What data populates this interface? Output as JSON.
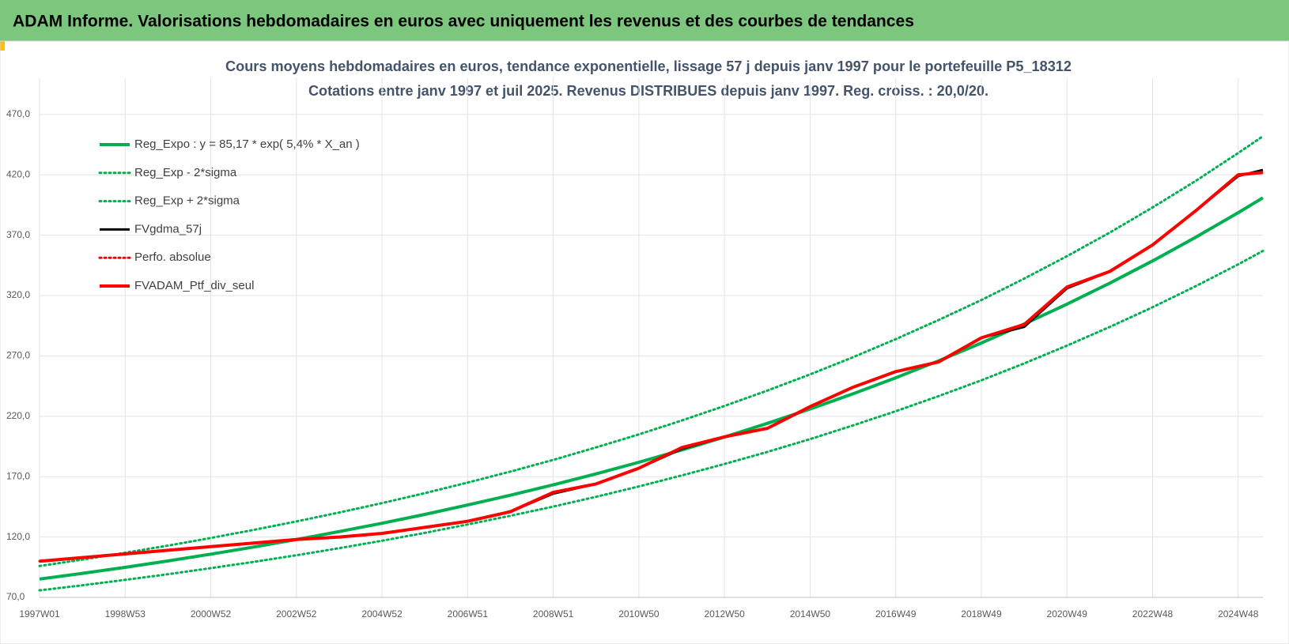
{
  "header": {
    "title": "ADAM Informe. Valorisations hebdomadaires en euros avec uniquement les revenus et des courbes de tendances"
  },
  "chart_data": {
    "type": "line",
    "title": "Cours moyens hebdomadaires  en euros, tendance exponentielle, lissage 57 j depuis janv 1997 pour le portefeuille P5_18312",
    "subtitle": "Cotations entre janv 1997 et juil 2025. Revenus DISTRIBUES depuis janv 1997. Reg. croiss. : 20,0/20.",
    "x": [
      0,
      52,
      104,
      156,
      208,
      260,
      312,
      364,
      416,
      468,
      520,
      572,
      624,
      676,
      728,
      780,
      832,
      884,
      936,
      988,
      1040,
      1092,
      1144,
      1196,
      1248,
      1300,
      1352,
      1404,
      1456,
      1486
    ],
    "xlim": [
      0,
      1486
    ],
    "xticks": [
      {
        "value": 0,
        "label": "1997W01"
      },
      {
        "value": 104,
        "label": "1998W53"
      },
      {
        "value": 208,
        "label": "2000W52"
      },
      {
        "value": 312,
        "label": "2002W52"
      },
      {
        "value": 416,
        "label": "2004W52"
      },
      {
        "value": 520,
        "label": "2006W51"
      },
      {
        "value": 624,
        "label": "2008W51"
      },
      {
        "value": 728,
        "label": "2010W50"
      },
      {
        "value": 832,
        "label": "2012W50"
      },
      {
        "value": 936,
        "label": "2014W50"
      },
      {
        "value": 1040,
        "label": "2016W49"
      },
      {
        "value": 1144,
        "label": "2018W49"
      },
      {
        "value": 1248,
        "label": "2020W49"
      },
      {
        "value": 1352,
        "label": "2022W48"
      },
      {
        "value": 1456,
        "label": "2024W48"
      }
    ],
    "ylim": [
      70,
      500
    ],
    "yticks": [
      {
        "value": 70,
        "label": "70,0"
      },
      {
        "value": 120,
        "label": "120,0"
      },
      {
        "value": 170,
        "label": "170,0"
      },
      {
        "value": 220,
        "label": "220,0"
      },
      {
        "value": 270,
        "label": "270,0"
      },
      {
        "value": 320,
        "label": "320,0"
      },
      {
        "value": 370,
        "label": "370,0"
      },
      {
        "value": 420,
        "label": "420,0"
      },
      {
        "value": 470,
        "label": "470,0"
      }
    ],
    "grid": true,
    "legend": "top-left",
    "series": [
      {
        "name": "Reg_Expo : y = 85,17 * exp( 5,4% *  X_an )",
        "color": "#00b050",
        "dash": "solid",
        "width": 4,
        "values": [
          85.2,
          89.9,
          94.9,
          100.2,
          105.8,
          111.7,
          117.9,
          124.5,
          131.4,
          138.7,
          146.5,
          154.6,
          163.2,
          172.3,
          181.9,
          192.1,
          202.8,
          214.1,
          226.0,
          238.6,
          251.9,
          265.9,
          280.7,
          296.4,
          312.9,
          330.3,
          348.7,
          368.1,
          388.7,
          401.0
        ]
      },
      {
        "name": "Reg_Exp - 2*sigma",
        "color": "#00b050",
        "dash": "dotted",
        "width": 3,
        "values": [
          75.8,
          80.0,
          84.5,
          89.2,
          94.2,
          99.4,
          104.9,
          110.8,
          116.9,
          123.4,
          130.4,
          137.6,
          145.2,
          153.3,
          161.9,
          171.0,
          180.5,
          190.5,
          201.1,
          212.4,
          224.2,
          236.7,
          249.8,
          263.8,
          278.5,
          294.0,
          310.3,
          327.6,
          345.9,
          356.9
        ]
      },
      {
        "name": "Reg_Exp + 2*sigma",
        "color": "#00b050",
        "dash": "dotted",
        "width": 3,
        "values": [
          96.0,
          101.3,
          107.0,
          112.9,
          119.2,
          125.9,
          132.9,
          140.3,
          148.1,
          156.3,
          165.1,
          174.2,
          183.9,
          194.2,
          205.0,
          216.5,
          228.6,
          241.3,
          254.7,
          268.9,
          283.9,
          299.7,
          316.3,
          334.0,
          352.6,
          372.2,
          393.0,
          414.8,
          438.1,
          451.9
        ]
      },
      {
        "name": "FVgdma_57j",
        "color": "#000000",
        "dash": "solid",
        "width": 3,
        "values": [
          100,
          103,
          106,
          109,
          112,
          115,
          118,
          120,
          123,
          128,
          133,
          141,
          156,
          164,
          177,
          193,
          203,
          210,
          228,
          244,
          257,
          265,
          285,
          294,
          326,
          340,
          362,
          390,
          419,
          424
        ]
      },
      {
        "name": "Perfo. absolue",
        "color": "#ff0000",
        "dash": "dotted",
        "width": 3,
        "values": [
          100,
          103,
          106,
          109,
          112,
          115,
          118,
          120,
          123,
          128,
          133,
          141,
          157,
          164,
          177,
          194,
          203,
          210,
          228,
          244,
          257,
          265,
          285,
          296,
          327,
          340,
          362,
          390,
          420,
          422
        ]
      },
      {
        "name": "FVADAM_Ptf_div_seul",
        "color": "#ff0000",
        "dash": "solid",
        "width": 4,
        "values": [
          100,
          103,
          106,
          109,
          112,
          115,
          118,
          120,
          123,
          128,
          133,
          141,
          157,
          164,
          177,
          194,
          203,
          210,
          228,
          244,
          257,
          265,
          285,
          296,
          327,
          340,
          362,
          390,
          420,
          422
        ]
      }
    ]
  }
}
